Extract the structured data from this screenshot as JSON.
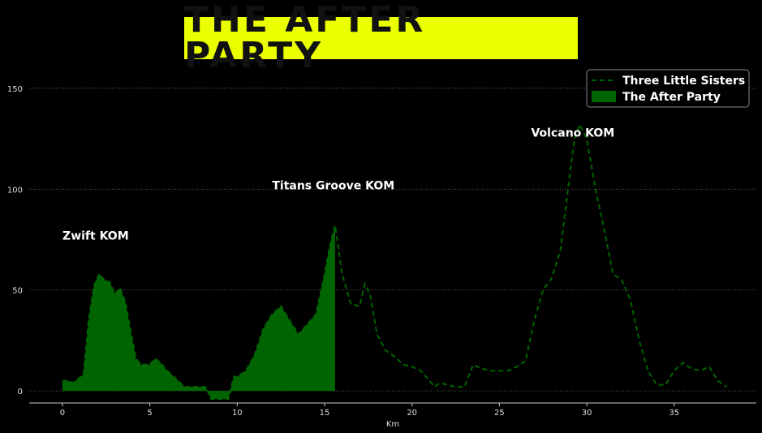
{
  "chart_data": {
    "type": "area",
    "title": "THE AFTER PARTY",
    "xlabel": "Km",
    "ylabel": "",
    "xlim": [
      -1.9,
      39.7
    ],
    "ylim": [
      -6,
      160
    ],
    "x_ticks": [
      0,
      5,
      10,
      15,
      20,
      25,
      30,
      35
    ],
    "y_ticks": [
      0,
      50,
      100,
      150
    ],
    "grid": "horizontal dotted",
    "legend_position": "top-right",
    "colors": {
      "background": "#000000",
      "title_bg": "#eaff00",
      "fill": "#006400",
      "dashed": "#006400",
      "grid": "#888888"
    },
    "series": [
      {
        "name": "Three Little Sisters",
        "style": "dashed line",
        "x": [
          0,
          0.3,
          0.6,
          0.9,
          1.2,
          1.5,
          1.8,
          2.1,
          2.4,
          2.7,
          3.0,
          3.3,
          3.6,
          3.9,
          4.2,
          4.5,
          4.8,
          5.0,
          5.3,
          5.6,
          6.0,
          6.5,
          7.0,
          7.5,
          8.0,
          8.2,
          8.5,
          9.0,
          9.5,
          9.8,
          10.0,
          10.5,
          11.0,
          11.5,
          12.0,
          12.5,
          13.0,
          13.5,
          14.0,
          14.5,
          15.0,
          15.3,
          15.6,
          16.0,
          16.5,
          17.0,
          17.3,
          17.6,
          18.0,
          18.5,
          19.0,
          19.5,
          20.0,
          20.5,
          21.0,
          21.3,
          21.6,
          22.0,
          22.5,
          23.0,
          23.5,
          24.0,
          24.5,
          25.0,
          25.5,
          26.0,
          26.5,
          27.0,
          27.5,
          28.0,
          28.5,
          29.0,
          29.3,
          29.6,
          30.0,
          30.5,
          31.0,
          31.5,
          32.0,
          32.5,
          33.0,
          33.5,
          34.0,
          34.5,
          35.0,
          35.5,
          36.0,
          36.5,
          37.0,
          37.5,
          38.0
        ],
        "values": [
          5,
          5,
          4,
          6,
          8,
          35,
          52,
          58,
          55,
          54,
          48,
          51,
          44,
          30,
          16,
          13,
          13,
          13,
          16,
          14,
          10,
          6,
          2,
          2,
          2,
          2,
          -4,
          -4,
          -4,
          7,
          7,
          10,
          18,
          31,
          38,
          42,
          35,
          28,
          33,
          38,
          58,
          72,
          82,
          58,
          43,
          42,
          53,
          48,
          28,
          20,
          17,
          13,
          12,
          10,
          5,
          2,
          4,
          3,
          2,
          2,
          13,
          11,
          10,
          10,
          10,
          12,
          15,
          35,
          50,
          56,
          70,
          105,
          125,
          132,
          125,
          100,
          80,
          58,
          55,
          45,
          25,
          10,
          3,
          3,
          10,
          14,
          11,
          10,
          12,
          5,
          2
        ]
      },
      {
        "name": "The After Party",
        "style": "filled area",
        "x": [
          0,
          0.3,
          0.6,
          0.9,
          1.2,
          1.5,
          1.8,
          2.1,
          2.4,
          2.7,
          3.0,
          3.3,
          3.6,
          3.9,
          4.2,
          4.5,
          4.8,
          5.0,
          5.3,
          5.6,
          6.0,
          6.5,
          7.0,
          7.5,
          8.0,
          8.2,
          8.5,
          9.0,
          9.5,
          9.8,
          10.0,
          10.5,
          11.0,
          11.5,
          12.0,
          12.5,
          13.0,
          13.5,
          14.0,
          14.5,
          15.0,
          15.3,
          15.6
        ],
        "values": [
          5,
          5,
          4,
          6,
          8,
          35,
          52,
          58,
          55,
          54,
          48,
          51,
          44,
          30,
          16,
          13,
          13,
          13,
          16,
          14,
          10,
          6,
          2,
          2,
          2,
          2,
          -4,
          -4,
          -4,
          7,
          7,
          10,
          18,
          31,
          38,
          42,
          35,
          28,
          33,
          38,
          58,
          72,
          82
        ]
      }
    ],
    "annotations": [
      {
        "text": "Zwift KOM",
        "x": 1.9,
        "y": 75
      },
      {
        "text": "Titans Groove KOM",
        "x": 15.5,
        "y": 100
      },
      {
        "text": "Volcano KOM",
        "x": 29.2,
        "y": 126
      }
    ]
  }
}
